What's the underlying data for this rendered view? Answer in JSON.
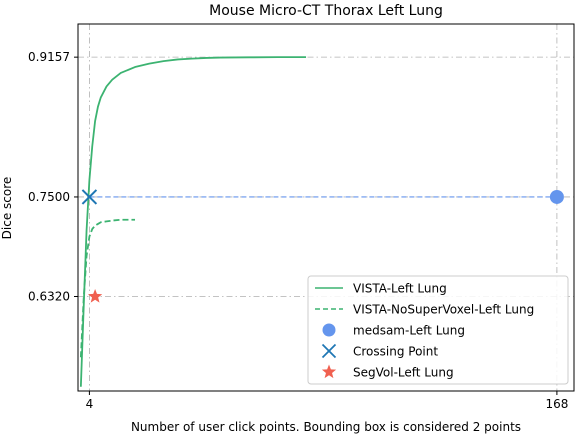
{
  "chart_data": {
    "type": "line",
    "title": "Mouse Micro-CT Thorax Left Lung",
    "xlabel": "Number of user click points. Bounding box is considered 2 points",
    "ylabel": "Dice score",
    "xlim": [
      0,
      174
    ],
    "ylim": [
      0.52,
      0.955
    ],
    "x_ticks": [
      4,
      168
    ],
    "x_tick_labels": [
      "4",
      "168"
    ],
    "y_ticks": [
      0.632,
      0.75,
      0.9157
    ],
    "y_tick_labels": [
      "0.6320",
      "0.7500",
      "0.9157"
    ],
    "grid": true,
    "legend_position": "lower-right",
    "series": [
      {
        "name": "VISTA-Left Lung",
        "kind": "line",
        "style": "solid",
        "color": "#3cb371",
        "x": [
          1,
          2,
          3,
          4,
          5,
          6,
          7,
          8,
          10,
          12,
          15,
          20,
          25,
          30,
          35,
          40,
          45,
          50,
          60,
          70,
          80
        ],
        "y": [
          0.525,
          0.62,
          0.71,
          0.77,
          0.81,
          0.84,
          0.857,
          0.868,
          0.881,
          0.889,
          0.897,
          0.904,
          0.908,
          0.911,
          0.913,
          0.914,
          0.9148,
          0.9152,
          0.9155,
          0.9157,
          0.9157
        ]
      },
      {
        "name": "VISTA-NoSuperVoxel-Left Lung",
        "kind": "line",
        "style": "dashed",
        "color": "#3cb371",
        "x": [
          1,
          2,
          3,
          4,
          5,
          6,
          7,
          8,
          10,
          12,
          15,
          20
        ],
        "y": [
          0.56,
          0.63,
          0.68,
          0.703,
          0.712,
          0.716,
          0.718,
          0.72,
          0.721,
          0.722,
          0.723,
          0.723
        ]
      },
      {
        "name": "medsam-Left Lung",
        "kind": "point",
        "marker": "circle",
        "color": "#6495ed",
        "x": [
          168
        ],
        "y": [
          0.75
        ]
      },
      {
        "name": "Crossing Point",
        "kind": "point",
        "marker": "x",
        "color": "#1f77b4",
        "x": [
          4
        ],
        "y": [
          0.75
        ]
      },
      {
        "name": "SegVol-Left Lung",
        "kind": "point",
        "marker": "star",
        "color": "#f06050",
        "x": [
          6
        ],
        "y": [
          0.632
        ]
      }
    ],
    "reference_lines": [
      {
        "orientation": "horizontal",
        "y": 0.75,
        "x_from": 4,
        "x_to": 168,
        "style": "dashed",
        "color": "#6495ed"
      }
    ]
  }
}
